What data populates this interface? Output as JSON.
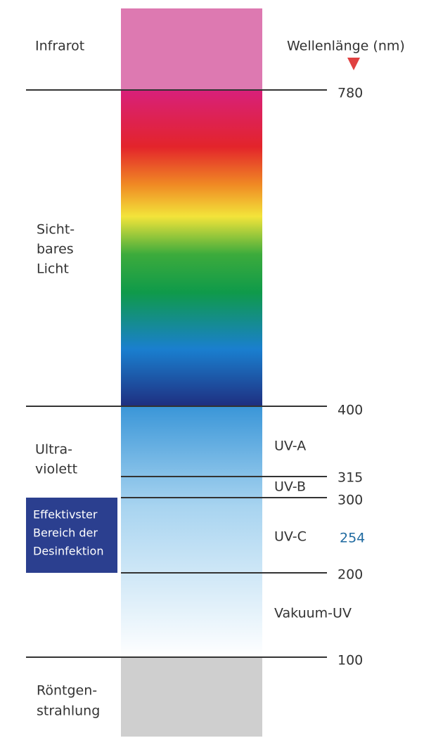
{
  "header": {
    "axis_label": "Wellenlänge (nm)"
  },
  "regions": {
    "infrared": [
      "Infrarot"
    ],
    "visible": [
      "Sicht-",
      "bares",
      "Licht"
    ],
    "ultraviolet": [
      "Ultra-",
      "violett"
    ],
    "xray": [
      "Röntgen-",
      "strahlung"
    ]
  },
  "highlight_box": [
    "Effektivster",
    "Bereich der",
    "Desinfektion"
  ],
  "bands": {
    "uva": "UV-A",
    "uvb": "UV-B",
    "uvc": "UV-C",
    "vacuum": "Vakuum-UV"
  },
  "wavelengths": {
    "w780": "780",
    "w400": "400",
    "w315": "315",
    "w300": "300",
    "w254": "254",
    "w200": "200",
    "w100": "100"
  }
}
